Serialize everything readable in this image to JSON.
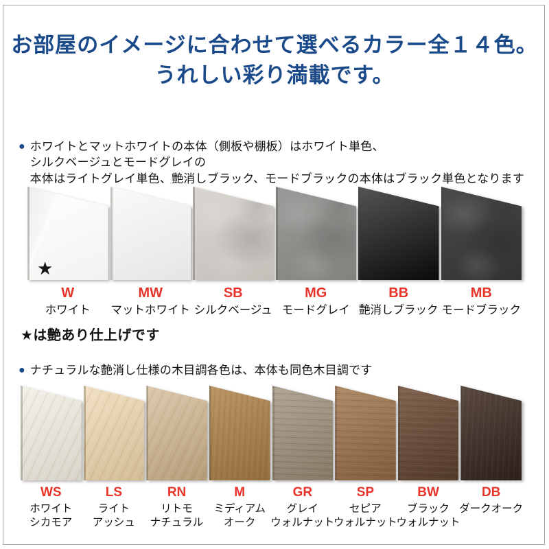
{
  "header": {
    "title_line1": "お部屋のイメージに合わせて選べるカラー全１４色。",
    "title_line2": "うれしい彩り満載です。"
  },
  "ui": {
    "bullet": "●"
  },
  "colors": {
    "accent_navy": "#1b4a8a",
    "code_red": "#e8332a",
    "text": "#141414",
    "frame_border": "#a5a5a5"
  },
  "footnote": "★は艶あり仕上げです",
  "sections": [
    {
      "note": "ホワイトとマットホワイトの本体（側板や棚板）はホワイト単色、シルクベージュとモードグレイの\n本体はライトグレイ単色、艶消しブラック、モードブラックの本体はブラック単色となります",
      "swatches": [
        {
          "code": "W",
          "name": "ホワイト",
          "marker": "★",
          "color1": "#ffffff",
          "color2": "#f2f2f1",
          "texture": "gloss",
          "grain": "none"
        },
        {
          "code": "MW",
          "name": "マットホワイト",
          "color1": "#f8f8f7",
          "color2": "#ececeb",
          "texture": "flat",
          "grain": "none"
        },
        {
          "code": "SB",
          "name": "シルクベージュ",
          "color1": "#d9d6d1",
          "color2": "#c3c0ba",
          "texture": "stone",
          "grain": "none"
        },
        {
          "code": "MG",
          "name": "モードグレイ",
          "color1": "#9a9a98",
          "color2": "#82827f",
          "texture": "stone",
          "grain": "none"
        },
        {
          "code": "BB",
          "name": "艶消しブラック",
          "color1": "#1a1a1a",
          "color2": "#0a0a0a",
          "texture": "flat",
          "grain": "none"
        },
        {
          "code": "MB",
          "name": "モードブラック",
          "color1": "#4b4b4b",
          "color2": "#323232",
          "texture": "stone",
          "grain": "none"
        }
      ]
    },
    {
      "note": "ナチュラルな艶消し仕様の木目調各色は、本体も同色木目調です",
      "swatches": [
        {
          "code": "WS",
          "name": "ホワイト\nシカモア",
          "color1": "#f2efe7",
          "color2": "#e5e1d5",
          "texture": "wood",
          "grain": "diag"
        },
        {
          "code": "LS",
          "name": "ライト\nアッシュ",
          "color1": "#f0dcbb",
          "color2": "#dfc89e",
          "texture": "wood",
          "grain": "diag"
        },
        {
          "code": "RN",
          "name": "リトモ\nナチュラル",
          "color1": "#d8c2a2",
          "color2": "#bfa67f",
          "texture": "wood",
          "grain": "diag"
        },
        {
          "code": "M",
          "name": "ミディアム\nオーク",
          "color1": "#b1884f",
          "color2": "#9b7340",
          "texture": "wood",
          "grain": "vert"
        },
        {
          "code": "GR",
          "name": "グレイ\nウォルナット",
          "color1": "#a79a87",
          "color2": "#8e806c",
          "texture": "wood",
          "grain": "horiz"
        },
        {
          "code": "SP",
          "name": "セピア\nウォルナット",
          "color1": "#a67c54",
          "color2": "#896240",
          "texture": "wood",
          "grain": "horiz"
        },
        {
          "code": "BW",
          "name": "ブラック\nウォルナット",
          "color1": "#71503a",
          "color2": "#563c2a",
          "texture": "wood",
          "grain": "horiz"
        },
        {
          "code": "DB",
          "name": "ダークオーク",
          "color1": "#443128",
          "color2": "#2e201a",
          "texture": "wood",
          "grain": "vert"
        }
      ]
    }
  ]
}
